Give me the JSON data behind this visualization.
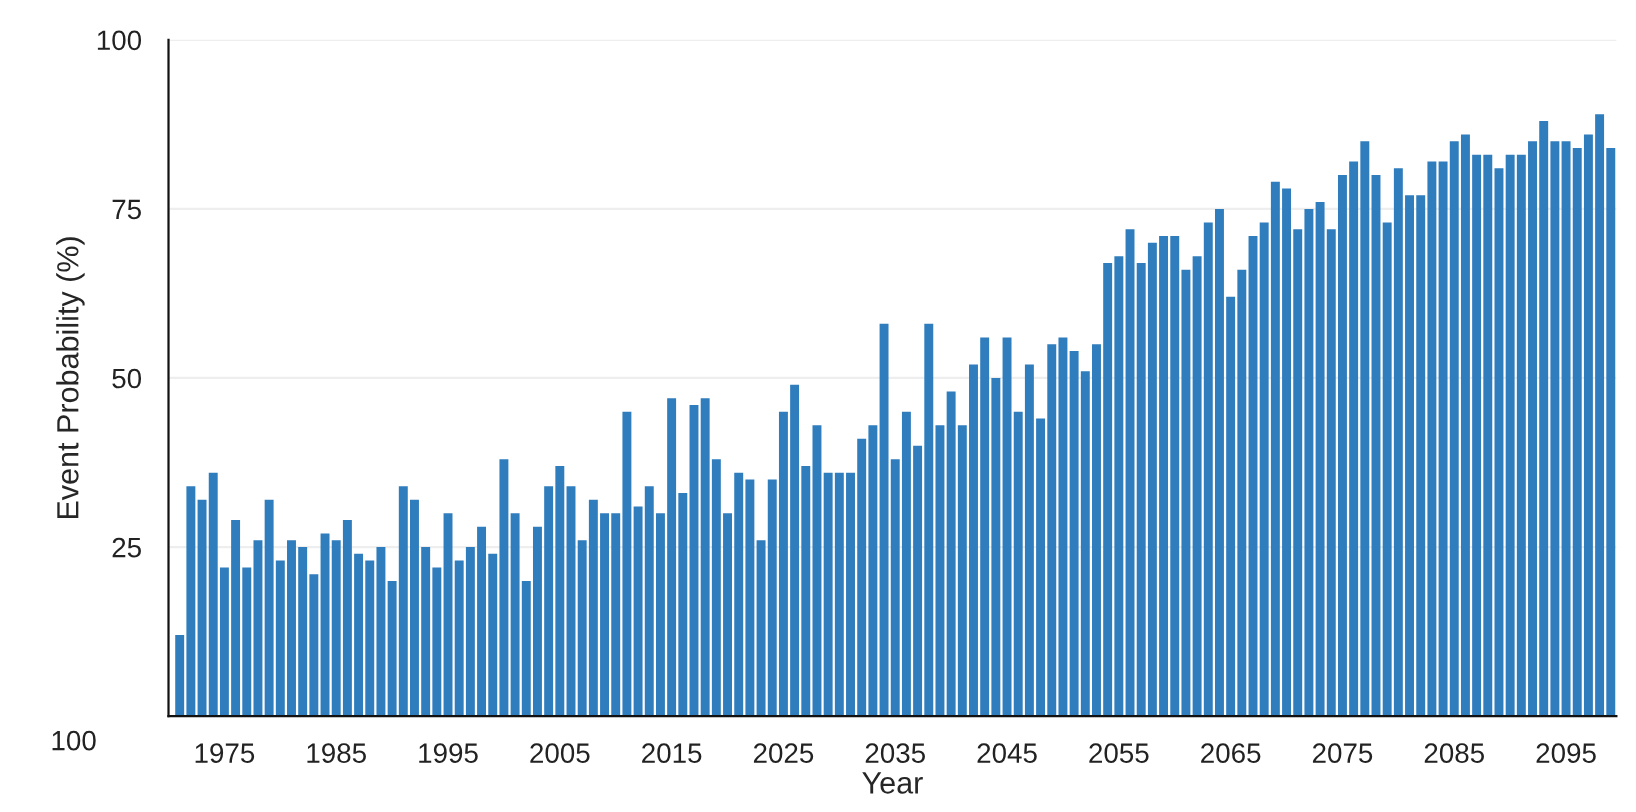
{
  "chart_data": {
    "type": "bar",
    "xlabel": "Year",
    "ylabel": "Event Probability (%)",
    "x": [
      1971,
      1972,
      1973,
      1974,
      1975,
      1976,
      1977,
      1978,
      1979,
      1980,
      1981,
      1982,
      1983,
      1984,
      1985,
      1986,
      1987,
      1988,
      1989,
      1990,
      1991,
      1992,
      1993,
      1994,
      1995,
      1996,
      1997,
      1998,
      1999,
      2000,
      2001,
      2002,
      2003,
      2004,
      2005,
      2006,
      2007,
      2008,
      2009,
      2010,
      2011,
      2012,
      2013,
      2014,
      2015,
      2016,
      2017,
      2018,
      2019,
      2020,
      2021,
      2022,
      2023,
      2024,
      2025,
      2026,
      2027,
      2028,
      2029,
      2030,
      2031,
      2032,
      2033,
      2034,
      2035,
      2036,
      2037,
      2038,
      2039,
      2040,
      2041,
      2042,
      2043,
      2044,
      2045,
      2046,
      2047,
      2048,
      2049,
      2050,
      2051,
      2052,
      2053,
      2054,
      2055,
      2056,
      2057,
      2058,
      2059,
      2060,
      2061,
      2062,
      2063,
      2064,
      2065,
      2066,
      2067,
      2068,
      2069,
      2070,
      2071,
      2072,
      2073,
      2074,
      2075,
      2076,
      2077,
      2078,
      2079,
      2080,
      2081,
      2082,
      2083,
      2084,
      2085,
      2086,
      2087,
      2088,
      2089,
      2090,
      2091,
      2092,
      2093,
      2094,
      2095,
      2096,
      2097,
      2098,
      2099
    ],
    "series": [
      {
        "color": "#2f7dbd",
        "values": [
          12,
          34,
          32,
          36,
          22,
          29,
          22,
          26,
          32,
          23,
          26,
          25,
          21,
          27,
          26,
          29,
          24,
          23,
          25,
          20,
          34,
          32,
          25,
          22,
          30,
          23,
          25,
          28,
          24,
          38,
          30,
          20,
          28,
          34,
          37,
          34,
          26,
          32,
          30,
          30,
          45,
          31,
          34,
          30,
          47,
          33,
          46,
          47,
          38,
          30,
          36,
          35,
          26,
          35,
          45,
          49,
          37,
          43,
          36,
          36,
          36,
          41,
          43,
          58,
          38,
          45,
          40,
          58,
          43,
          48,
          43,
          52,
          56,
          50,
          56,
          45,
          52,
          44,
          55,
          56,
          54,
          51,
          55,
          67,
          68,
          72,
          67,
          70,
          71,
          71,
          66,
          68,
          73,
          75,
          62,
          66,
          71,
          73,
          79,
          78,
          72,
          75,
          76,
          72,
          80,
          82,
          85,
          80,
          73,
          81,
          77,
          77,
          82,
          82,
          85,
          86,
          83,
          83,
          81,
          83,
          83,
          85,
          88,
          85,
          85,
          84,
          86,
          89,
          84
        ]
      }
    ],
    "xlim": [
      1970,
      2099.5
    ],
    "xticks": [
      1975,
      1985,
      1995,
      2005,
      2015,
      2025,
      2035,
      2045,
      2055,
      2065,
      2075,
      2085,
      2095
    ],
    "ylim": [
      0,
      100
    ],
    "yticks": [
      {
        "value": 0,
        "label": null
      },
      25,
      50,
      75,
      100
    ],
    "grid": "y",
    "legend": false,
    "annotations": [
      "100"
    ]
  }
}
